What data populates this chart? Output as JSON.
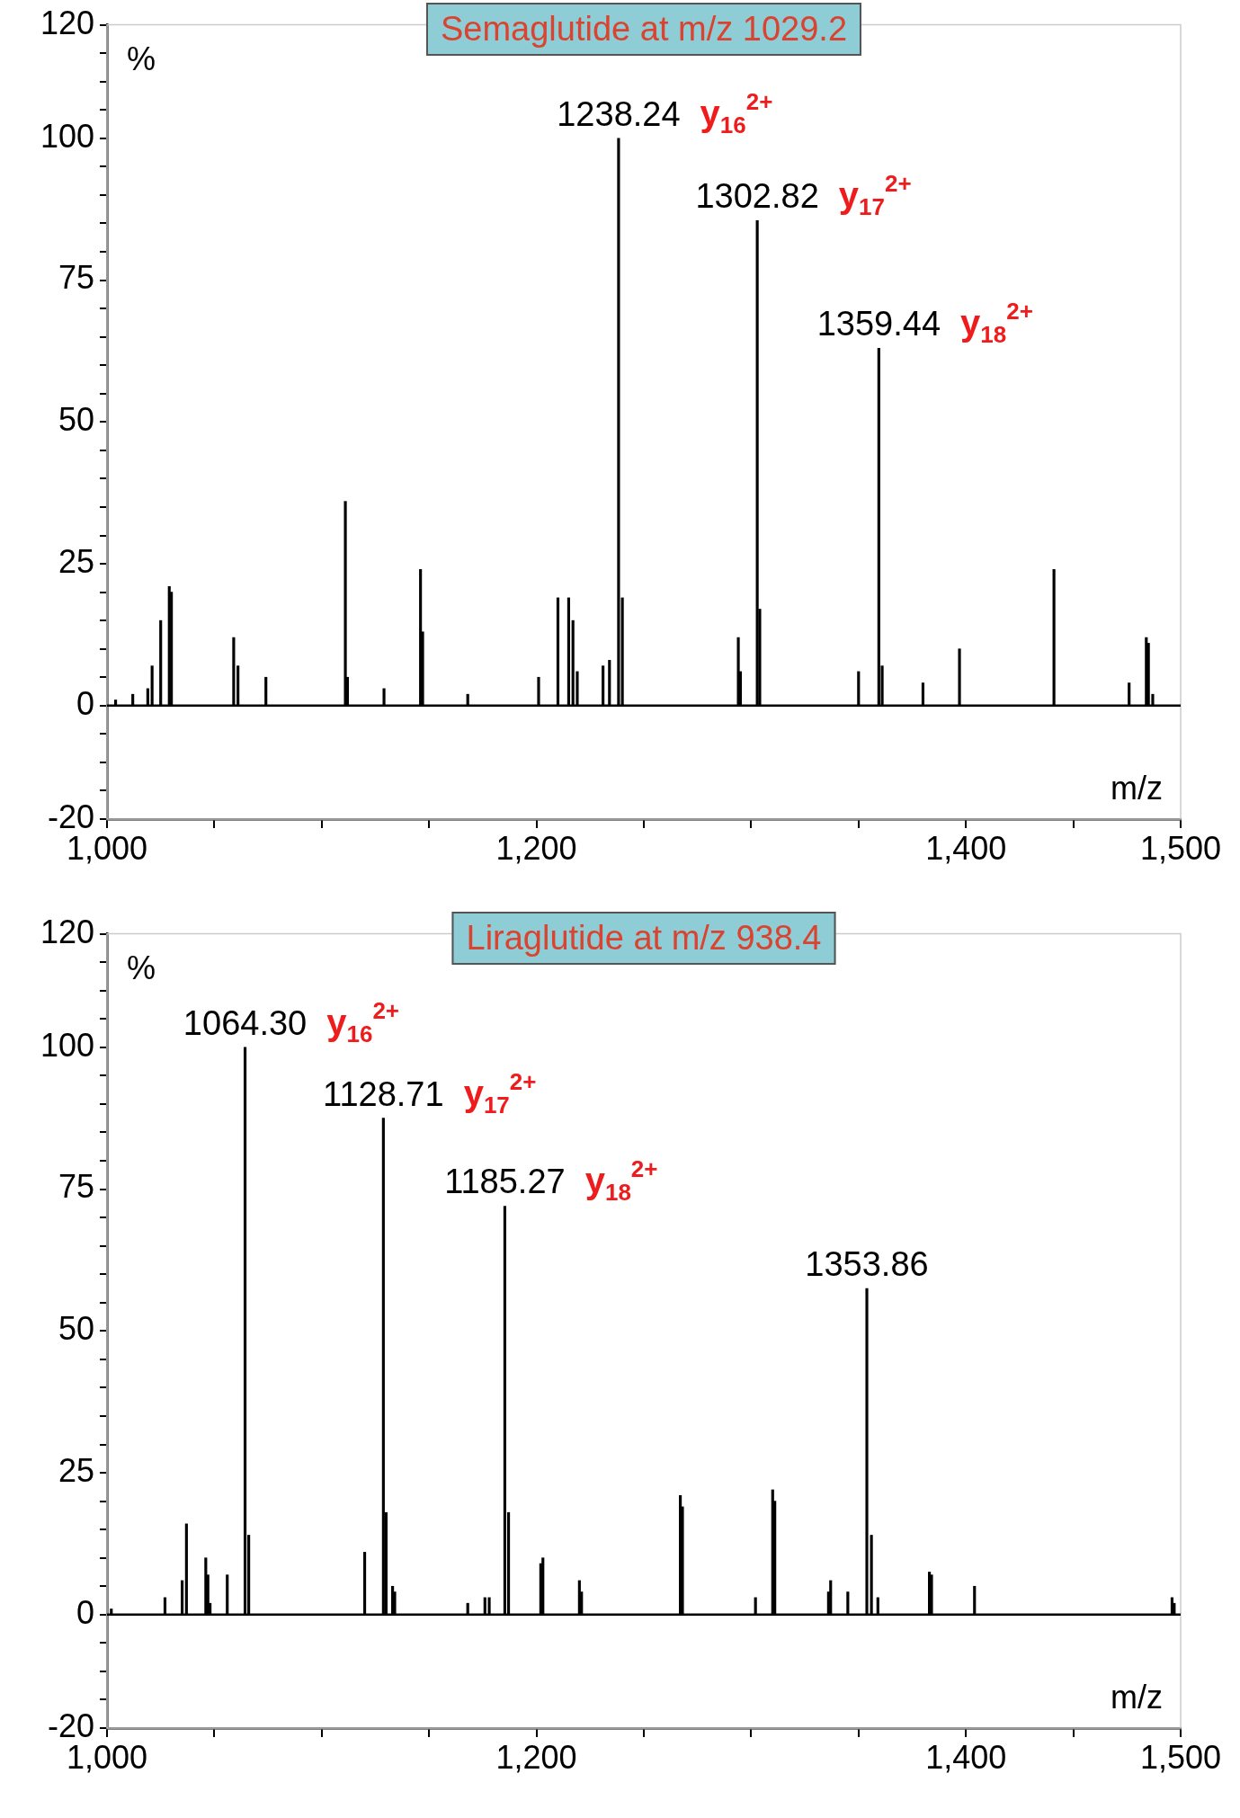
{
  "chart_data": [
    {
      "type": "bar",
      "title": "Semaglutide at m/z 1029.2",
      "xlabel": "m/z",
      "ylabel": "%",
      "color": "#000000",
      "x": [
        1004,
        1012,
        1019,
        1021,
        1025,
        1029,
        1030,
        1059,
        1061,
        1074,
        1111,
        1112,
        1129,
        1146,
        1147,
        1168,
        1201,
        1210,
        1215,
        1217,
        1219,
        1231,
        1234,
        1238.24,
        1240,
        1294,
        1295,
        1302.82,
        1304,
        1350,
        1359.44,
        1361,
        1380,
        1397,
        1441,
        1476,
        1484,
        1485,
        1487
      ],
      "values": [
        1,
        2,
        3,
        7,
        15,
        21,
        20,
        12,
        7,
        5,
        36,
        5,
        3,
        24,
        13,
        2,
        5,
        19,
        19,
        15,
        6,
        7,
        8,
        100,
        19,
        12,
        6,
        85.5,
        17,
        6,
        63,
        7,
        4,
        10,
        24,
        4,
        12,
        11,
        2
      ],
      "xlim": [
        1000,
        1500
      ],
      "xticks": [
        {
          "value": 1000,
          "label": "1,000"
        },
        {
          "value": 1050,
          "label": null
        },
        {
          "value": 1100,
          "label": null
        },
        {
          "value": 1150,
          "label": null
        },
        {
          "value": 1200,
          "label": "1,200"
        },
        {
          "value": 1250,
          "label": null
        },
        {
          "value": 1300,
          "label": null
        },
        {
          "value": 1350,
          "label": null
        },
        {
          "value": 1400,
          "label": "1,400"
        },
        {
          "value": 1450,
          "label": null
        },
        {
          "value": 1500,
          "label": "1,500"
        }
      ],
      "ylim": [
        -20,
        120
      ],
      "yticks": [
        -20,
        {
          "value": -15,
          "label": null
        },
        {
          "value": -10,
          "label": null
        },
        {
          "value": -5,
          "label": null
        },
        0,
        {
          "value": 5,
          "label": null
        },
        {
          "value": 10,
          "label": null
        },
        {
          "value": 15,
          "label": null
        },
        {
          "value": 20,
          "label": null
        },
        25,
        {
          "value": 30,
          "label": null
        },
        {
          "value": 35,
          "label": null
        },
        {
          "value": 40,
          "label": null
        },
        {
          "value": 45,
          "label": null
        },
        50,
        {
          "value": 55,
          "label": null
        },
        {
          "value": 60,
          "label": null
        },
        {
          "value": 65,
          "label": null
        },
        {
          "value": 70,
          "label": null
        },
        75,
        {
          "value": 80,
          "label": null
        },
        {
          "value": 85,
          "label": null
        },
        {
          "value": 90,
          "label": null
        },
        {
          "value": 95,
          "label": null
        },
        100,
        {
          "value": 105,
          "label": null
        },
        {
          "value": 110,
          "label": null
        },
        {
          "value": 115,
          "label": null
        },
        120
      ],
      "ref_lines": [
        {
          "axis": "y",
          "value": 0
        }
      ],
      "annotations": [
        {
          "text": "1238.24 y$_{16}$$^{2+}$",
          "x": 1238.24,
          "y": 100
        },
        {
          "text": "1302.82 y$_{17}$$^{2+}$",
          "x": 1302.82,
          "y": 85.5
        },
        {
          "text": "1359.44 y$_{18}$$^{2+}$",
          "x": 1359.44,
          "y": 63
        }
      ]
    },
    {
      "type": "bar",
      "title": "Liraglutide at m/z 938.4",
      "xlabel": "m/z",
      "ylabel": "%",
      "color": "#000000",
      "x": [
        1002,
        1027,
        1035,
        1037,
        1046,
        1047,
        1048,
        1056,
        1064.3,
        1066,
        1120,
        1128.71,
        1130,
        1133,
        1134,
        1168,
        1176,
        1178,
        1185.27,
        1187,
        1202,
        1203,
        1220,
        1221,
        1267,
        1268,
        1302,
        1310,
        1311,
        1336,
        1337,
        1345,
        1353.86,
        1356,
        1359,
        1383,
        1384,
        1404,
        1496,
        1497
      ],
      "values": [
        1,
        3,
        6,
        16,
        10,
        7,
        2,
        7,
        100,
        14,
        11,
        87.5,
        18,
        5,
        4,
        2,
        3,
        3,
        72,
        18,
        9,
        10,
        6,
        4,
        21,
        19,
        3,
        22,
        20,
        4,
        6,
        4,
        57.5,
        14,
        3,
        7.5,
        7,
        5,
        3,
        2
      ],
      "xlim": [
        1000,
        1500
      ],
      "xticks": [
        {
          "value": 1000,
          "label": "1,000"
        },
        {
          "value": 1050,
          "label": null
        },
        {
          "value": 1100,
          "label": null
        },
        {
          "value": 1150,
          "label": null
        },
        {
          "value": 1200,
          "label": "1,200"
        },
        {
          "value": 1250,
          "label": null
        },
        {
          "value": 1300,
          "label": null
        },
        {
          "value": 1350,
          "label": null
        },
        {
          "value": 1400,
          "label": "1,400"
        },
        {
          "value": 1450,
          "label": null
        },
        {
          "value": 1500,
          "label": "1,500"
        }
      ],
      "ylim": [
        -20,
        120
      ],
      "yticks": [
        -20,
        {
          "value": -15,
          "label": null
        },
        {
          "value": -10,
          "label": null
        },
        {
          "value": -5,
          "label": null
        },
        0,
        {
          "value": 5,
          "label": null
        },
        {
          "value": 10,
          "label": null
        },
        {
          "value": 15,
          "label": null
        },
        {
          "value": 20,
          "label": null
        },
        25,
        {
          "value": 30,
          "label": null
        },
        {
          "value": 35,
          "label": null
        },
        {
          "value": 40,
          "label": null
        },
        {
          "value": 45,
          "label": null
        },
        50,
        {
          "value": 55,
          "label": null
        },
        {
          "value": 60,
          "label": null
        },
        {
          "value": 65,
          "label": null
        },
        {
          "value": 70,
          "label": null
        },
        75,
        {
          "value": 80,
          "label": null
        },
        {
          "value": 85,
          "label": null
        },
        {
          "value": 90,
          "label": null
        },
        {
          "value": 95,
          "label": null
        },
        100,
        {
          "value": 105,
          "label": null
        },
        {
          "value": 110,
          "label": null
        },
        {
          "value": 115,
          "label": null
        },
        120
      ],
      "ref_lines": [
        {
          "axis": "y",
          "value": 0
        }
      ],
      "annotations": [
        {
          "text": "1064.30 y$_{16}$$^{2+}$",
          "x": 1064.3,
          "y": 100
        },
        {
          "text": "1128.71 y$_{17}$$^{2+}$",
          "x": 1128.71,
          "y": 87.5
        },
        {
          "text": "1185.27 y$_{18}$$^{2+}$",
          "x": 1185.27,
          "y": 72
        },
        {
          "text": "1353.86",
          "x": 1353.86,
          "y": 57.5
        }
      ]
    }
  ]
}
